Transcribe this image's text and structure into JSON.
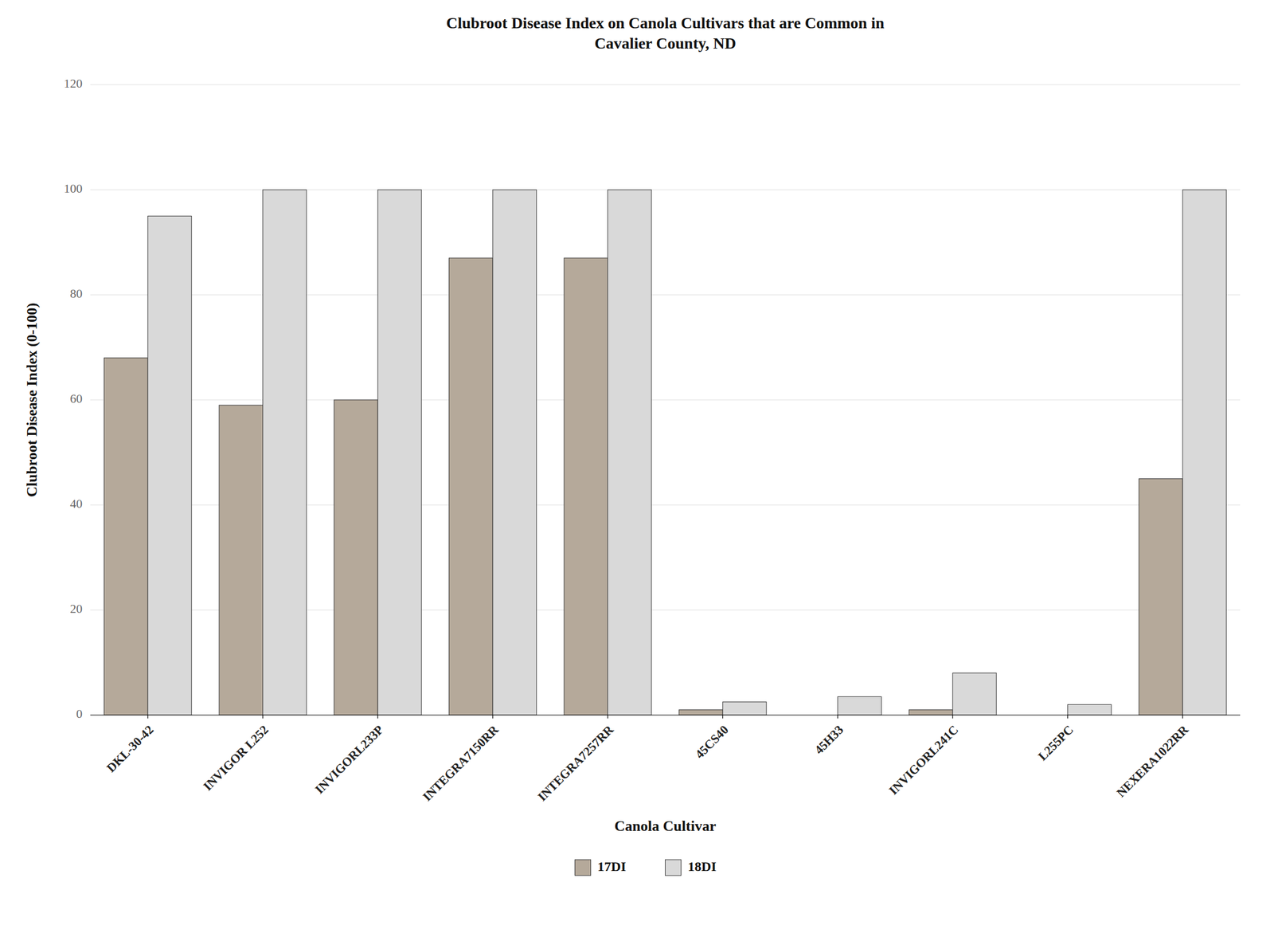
{
  "chart_data": {
    "type": "bar",
    "title": "Clubroot Disease Index on Canola Cultivars that are Common in\nCavalier County, ND",
    "xlabel": "Canola Cultivar",
    "ylabel": "Clubroot Disease Index (0-100)",
    "categories": [
      "DKL-30-42",
      "INVIGOR L252",
      "INVIGORL233P",
      "INTEGRA7150RR",
      "INTEGRA7257RR",
      "45CS40",
      "45H33",
      "INVIGORL241C",
      "L255PC",
      "NEXERA1022RR"
    ],
    "series": [
      {
        "name": "17DI",
        "color": "#b5a99a",
        "values": [
          68,
          59,
          60,
          87,
          87,
          1,
          0,
          1,
          0,
          45
        ]
      },
      {
        "name": "18DI",
        "color": "#d9d9d9",
        "values": [
          95,
          100,
          100,
          100,
          100,
          2.5,
          3.5,
          8,
          2,
          100
        ]
      }
    ],
    "ylim": [
      0,
      120
    ],
    "yticks": [
      0,
      20,
      40,
      60,
      80,
      100,
      120
    ],
    "grid": true,
    "legend": "bottom"
  }
}
